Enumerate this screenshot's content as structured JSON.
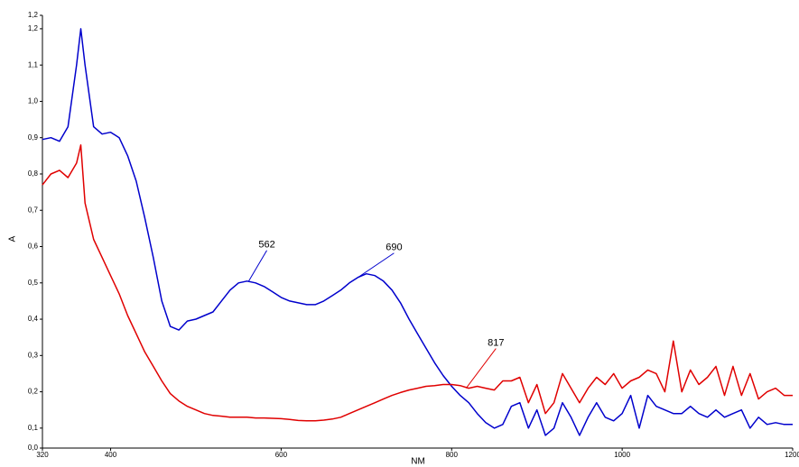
{
  "chart_data": {
    "type": "line",
    "xlabel": "NM",
    "ylabel": "A",
    "x": [
      320,
      330,
      340,
      350,
      360,
      365,
      370,
      380,
      390,
      400,
      410,
      420,
      430,
      440,
      450,
      460,
      470,
      480,
      490,
      500,
      510,
      520,
      530,
      540,
      550,
      560,
      570,
      580,
      590,
      600,
      610,
      620,
      630,
      640,
      650,
      660,
      670,
      680,
      690,
      700,
      710,
      720,
      730,
      740,
      750,
      760,
      770,
      780,
      790,
      800,
      810,
      820,
      830,
      840,
      850,
      860,
      870,
      880,
      890,
      900,
      910,
      920,
      930,
      940,
      950,
      960,
      970,
      980,
      990,
      1000,
      1010,
      1020,
      1030,
      1040,
      1050,
      1060,
      1070,
      1080,
      1090,
      1100,
      1110,
      1120,
      1130,
      1140,
      1150,
      1160,
      1170,
      1180,
      1190,
      1200
    ],
    "series": [
      {
        "name": "blue",
        "color": "#0000cc",
        "values": [
          0.895,
          0.9,
          0.89,
          0.93,
          1.1,
          1.2,
          1.1,
          0.93,
          0.91,
          0.915,
          0.9,
          0.85,
          0.78,
          0.68,
          0.57,
          0.45,
          0.38,
          0.37,
          0.395,
          0.4,
          0.41,
          0.42,
          0.45,
          0.48,
          0.5,
          0.505,
          0.5,
          0.49,
          0.475,
          0.46,
          0.45,
          0.445,
          0.44,
          0.44,
          0.45,
          0.465,
          0.48,
          0.5,
          0.515,
          0.525,
          0.52,
          0.505,
          0.48,
          0.445,
          0.4,
          0.36,
          0.32,
          0.28,
          0.245,
          0.215,
          0.19,
          0.17,
          0.14,
          0.115,
          0.1,
          0.11,
          0.16,
          0.17,
          0.1,
          0.15,
          0.08,
          0.1,
          0.17,
          0.13,
          0.08,
          0.13,
          0.17,
          0.13,
          0.12,
          0.14,
          0.19,
          0.1,
          0.19,
          0.16,
          0.15,
          0.14,
          0.14,
          0.16,
          0.14,
          0.13,
          0.15,
          0.13,
          0.14,
          0.15,
          0.1,
          0.13,
          0.11,
          0.115,
          0.11,
          0.11
        ]
      },
      {
        "name": "red",
        "color": "#e00000",
        "values": [
          0.77,
          0.8,
          0.81,
          0.79,
          0.83,
          0.88,
          0.72,
          0.62,
          0.57,
          0.52,
          0.47,
          0.41,
          0.36,
          0.31,
          0.27,
          0.23,
          0.195,
          0.175,
          0.16,
          0.15,
          0.14,
          0.135,
          0.133,
          0.13,
          0.13,
          0.13,
          0.128,
          0.128,
          0.127,
          0.126,
          0.124,
          0.121,
          0.12,
          0.12,
          0.122,
          0.125,
          0.13,
          0.14,
          0.15,
          0.16,
          0.17,
          0.18,
          0.19,
          0.198,
          0.205,
          0.21,
          0.215,
          0.217,
          0.22,
          0.22,
          0.217,
          0.21,
          0.215,
          0.21,
          0.205,
          0.23,
          0.23,
          0.24,
          0.17,
          0.22,
          0.14,
          0.17,
          0.25,
          0.21,
          0.17,
          0.21,
          0.24,
          0.22,
          0.25,
          0.21,
          0.23,
          0.24,
          0.26,
          0.25,
          0.2,
          0.34,
          0.2,
          0.26,
          0.22,
          0.24,
          0.27,
          0.19,
          0.27,
          0.19,
          0.25,
          0.18,
          0.2,
          0.21,
          0.19,
          0.19
        ]
      }
    ],
    "annotations": [
      {
        "text": "562",
        "x": 562,
        "y": 0.505,
        "color": "#0000cc"
      },
      {
        "text": "690",
        "x": 690,
        "y": 0.515,
        "color": "#0000cc"
      },
      {
        "text": "817",
        "x": 817,
        "y": 0.21,
        "color": "#e00000"
      }
    ],
    "xlim": [
      320,
      1200
    ],
    "xticks": [
      320,
      400,
      600,
      800,
      1000,
      1200
    ],
    "ylim": [
      0.045,
      1.237
    ],
    "yticks": [
      {
        "value": 0.045,
        "label": "0,0"
      },
      {
        "value": 0.1,
        "label": "0,1"
      },
      {
        "value": 0.2,
        "label": "0,2"
      },
      {
        "value": 0.3,
        "label": "0,3"
      },
      {
        "value": 0.4,
        "label": "0,4"
      },
      {
        "value": 0.5,
        "label": "0,5"
      },
      {
        "value": 0.6,
        "label": "0,6"
      },
      {
        "value": 0.7,
        "label": "0,7"
      },
      {
        "value": 0.8,
        "label": "0,8"
      },
      {
        "value": 0.9,
        "label": "0,9"
      },
      {
        "value": 1.0,
        "label": "1,0"
      },
      {
        "value": 1.1,
        "label": "1,1"
      },
      {
        "value": 1.2,
        "label": "1,2"
      },
      {
        "value": 1.237,
        "label": "1,2"
      }
    ],
    "grid": false
  }
}
